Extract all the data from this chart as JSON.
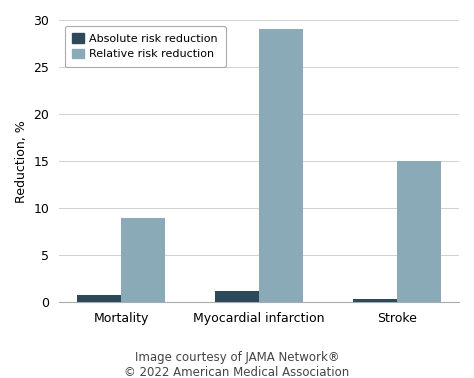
{
  "categories": [
    "Mortality",
    "Myocardial infarction",
    "Stroke"
  ],
  "absolute_values": [
    0.8,
    1.2,
    0.4
  ],
  "relative_values": [
    9.0,
    29.0,
    15.0
  ],
  "absolute_color": "#2e4a5a",
  "relative_color": "#8aaab8",
  "ylabel": "Reduction, %",
  "ylim": [
    0,
    30
  ],
  "yticks": [
    0,
    5,
    10,
    15,
    20,
    25,
    30
  ],
  "legend_labels": [
    "Absolute risk reduction",
    "Relative risk reduction"
  ],
  "footer_line1": "Image courtesy of JAMA Network®",
  "footer_line2": "© 2022 American Medical Association",
  "bar_width": 0.32,
  "background_color": "#ffffff",
  "grid_color": "#d0d0d0",
  "spine_color": "#aaaaaa",
  "tick_label_fontsize": 9,
  "ylabel_fontsize": 9,
  "legend_fontsize": 8,
  "footer_fontsize": 8.5,
  "footer_color": "#444444"
}
